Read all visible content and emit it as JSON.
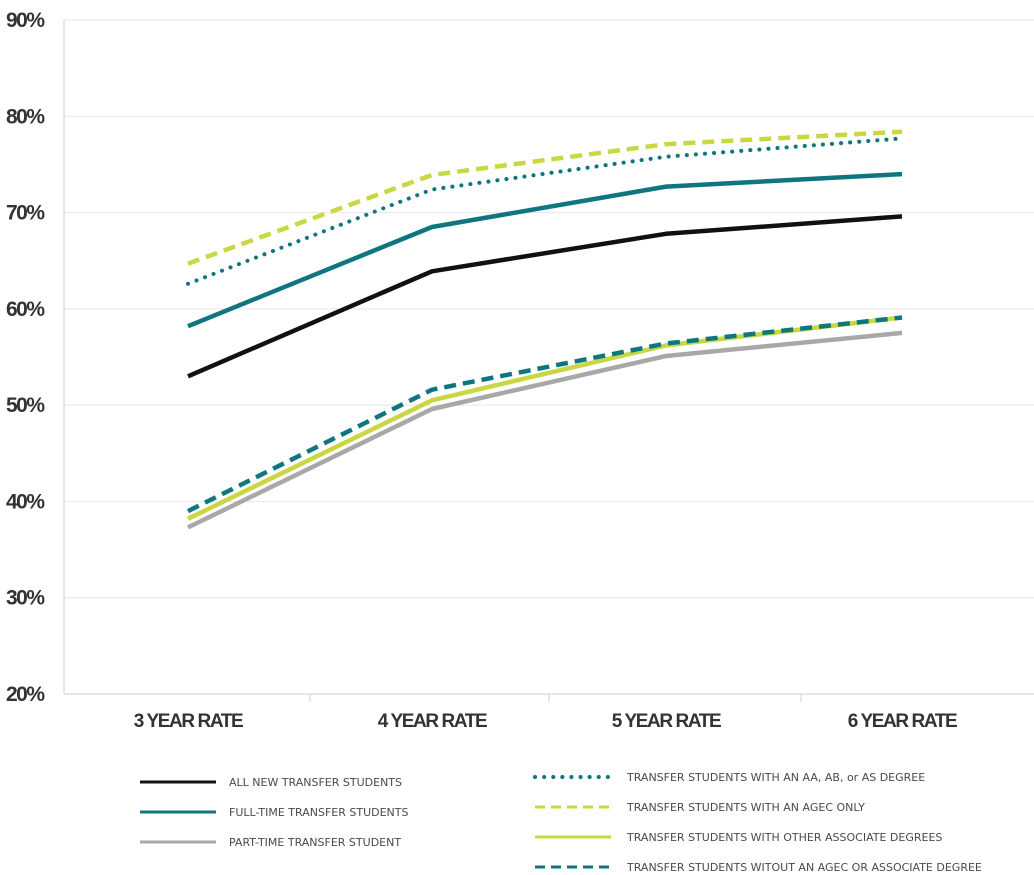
{
  "chart_data": {
    "type": "line",
    "title": "",
    "xlabel": "",
    "ylabel": "",
    "categories": [
      "3 YEAR RATE",
      "4 YEAR RATE",
      "5 YEAR RATE",
      "6 YEAR RATE"
    ],
    "ylim": [
      20,
      90
    ],
    "yticks": [
      20,
      30,
      40,
      50,
      60,
      70,
      80,
      90
    ],
    "ytick_labels": [
      "20%",
      "30%",
      "40%",
      "50%",
      "60%",
      "70%",
      "80%",
      "90%"
    ],
    "grid": "horizontal",
    "legend_position": "bottom",
    "series": [
      {
        "name": "ALL NEW TRANSFER STUDENTS",
        "values": [
          53.0,
          63.9,
          67.8,
          69.6
        ],
        "color": "#111111",
        "style": "solid"
      },
      {
        "name": "FULL-TIME TRANSFER STUDENTS",
        "values": [
          58.2,
          68.5,
          72.7,
          74.0
        ],
        "color": "#0f7680",
        "style": "solid"
      },
      {
        "name": "PART-TIME TRANSFER STUDENT",
        "values": [
          37.3,
          49.6,
          55.1,
          57.5
        ],
        "color": "#a8a8a8",
        "style": "solid"
      },
      {
        "name": "TRANSFER STUDENTS WITH AN AA, AB, or AS DEGREE",
        "values": [
          62.6,
          72.4,
          75.8,
          77.7
        ],
        "color": "#0f7680",
        "style": "dotted"
      },
      {
        "name": "TRANSFER STUDENTS WITH AN AGEC ONLY",
        "values": [
          64.7,
          73.9,
          77.1,
          78.4
        ],
        "color": "#c9d842",
        "style": "dashed"
      },
      {
        "name": "TRANSFER STUDENTS WITH OTHER ASSOCIATE DEGREES",
        "values": [
          38.2,
          50.5,
          56.2,
          59.1
        ],
        "color": "#c9d842",
        "style": "solid"
      },
      {
        "name": "TRANSFER STUDENTS WITOUT AN AGEC OR ASSOCIATE DEGREE",
        "values": [
          39.0,
          51.6,
          56.4,
          59.1
        ],
        "color": "#0f7680",
        "style": "dashed"
      }
    ]
  }
}
